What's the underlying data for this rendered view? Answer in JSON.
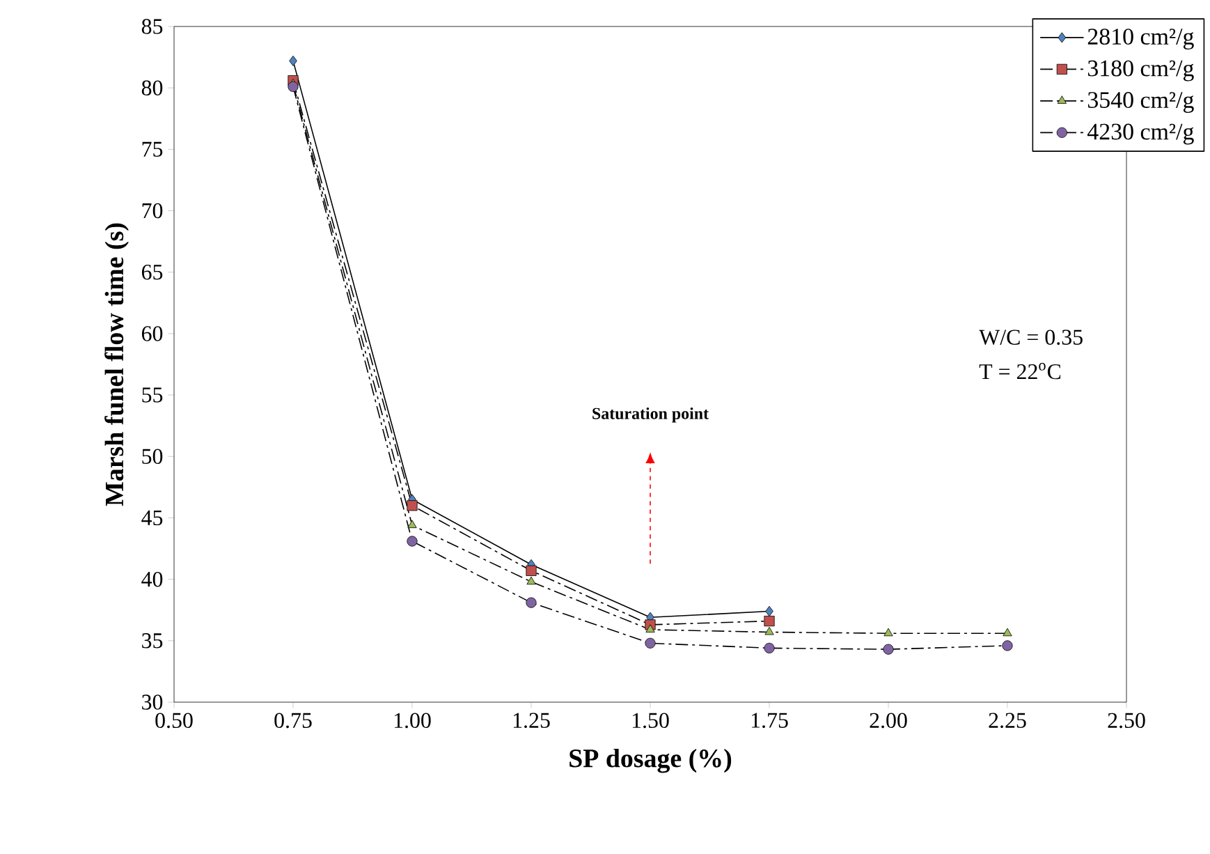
{
  "chart_data": {
    "type": "line",
    "xlabel": "SP dosage (%)",
    "ylabel": "Marsh funel flow time (s)",
    "xlim": [
      0.5,
      2.5
    ],
    "ylim": [
      30,
      85
    ],
    "xticks": [
      {
        "value": 0.5,
        "label": "0.50"
      },
      {
        "value": 0.75,
        "label": "0.75"
      },
      {
        "value": 1.0,
        "label": "1.00"
      },
      {
        "value": 1.25,
        "label": "1.25"
      },
      {
        "value": 1.5,
        "label": "1.50"
      },
      {
        "value": 1.75,
        "label": "1.75"
      },
      {
        "value": 2.0,
        "label": "2.00"
      },
      {
        "value": 2.25,
        "label": "2.25"
      },
      {
        "value": 2.5,
        "label": "2.50"
      }
    ],
    "yticks": [
      30,
      35,
      40,
      45,
      50,
      55,
      60,
      65,
      70,
      75,
      80,
      85
    ],
    "legend": "top right",
    "grid": false,
    "series": [
      {
        "name": "2810 cm²/g",
        "color": "#4f81bd",
        "marker": "diamond",
        "line_style": "solid",
        "x": [
          0.75,
          1.0,
          1.25,
          1.5,
          1.75
        ],
        "values": [
          82.2,
          46.5,
          41.2,
          36.9,
          37.4
        ]
      },
      {
        "name": "3180  cm²/g",
        "color": "#c0504d",
        "marker": "square",
        "line_style": "dashed",
        "x": [
          0.75,
          1.0,
          1.25,
          1.5,
          1.75
        ],
        "values": [
          80.6,
          46.0,
          40.7,
          36.3,
          36.6
        ]
      },
      {
        "name": "3540  cm²/g",
        "color": "#9bbb59",
        "marker": "triangle",
        "line_style": "dashed",
        "x": [
          0.75,
          1.0,
          1.25,
          1.5,
          1.75,
          2.0,
          2.25
        ],
        "values": [
          80.3,
          44.4,
          39.8,
          35.9,
          35.7,
          35.6,
          35.6
        ]
      },
      {
        "name": "4230  cm²/g",
        "color": "#8064a2",
        "marker": "circle",
        "line_style": "dashed",
        "x": [
          0.75,
          1.0,
          1.25,
          1.5,
          1.75,
          2.0,
          2.25
        ],
        "values": [
          80.1,
          43.1,
          38.1,
          34.8,
          34.4,
          34.3,
          34.6
        ]
      }
    ],
    "annotations": [
      "Saturation point",
      "W/C = 0.35",
      "T = 22$^{o}$C"
    ]
  }
}
